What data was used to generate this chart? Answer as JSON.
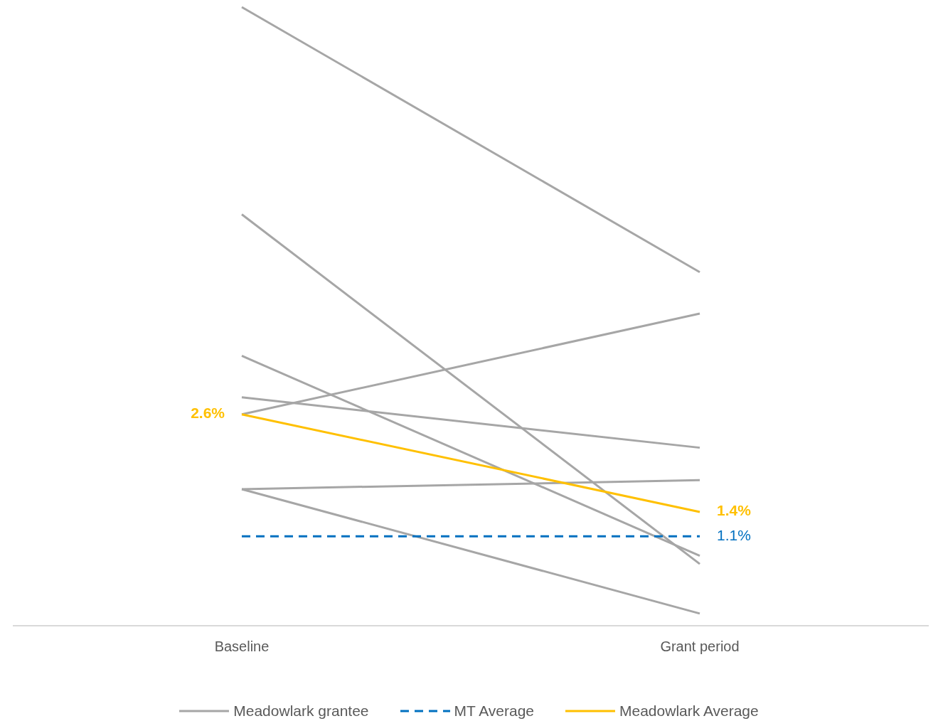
{
  "chart_data": {
    "type": "line",
    "categories": [
      "Baseline",
      "Grant period"
    ],
    "legend": "bottom",
    "marker": "none",
    "series": [
      {
        "name": "Meadowlark grantee",
        "color": "#a6a6a6",
        "values": [
          7.61,
          4.35
        ]
      },
      {
        "color": "#a6a6a6",
        "values": [
          5.06,
          0.76
        ]
      },
      {
        "color": "#a6a6a6",
        "values": [
          3.32,
          0.86
        ]
      },
      {
        "color": "#a6a6a6",
        "values": [
          2.81,
          2.19
        ]
      },
      {
        "color": "#a6a6a6",
        "values": [
          2.6,
          3.84
        ]
      },
      {
        "color": "#a6a6a6",
        "values": [
          1.68,
          1.79
        ]
      },
      {
        "color": "#a6a6a6",
        "values": [
          1.68,
          0.15
        ]
      },
      {
        "name": "MT Average",
        "color": "#0070c0",
        "line_style": "dashed",
        "values": [
          1.1,
          1.1
        ],
        "value_labels": [
          null,
          "1.1%"
        ]
      },
      {
        "name": "Meadowlark Average",
        "color": "#ffc000",
        "values": [
          2.6,
          1.4
        ],
        "value_labels": [
          "2.6%",
          "1.4%"
        ]
      }
    ]
  }
}
